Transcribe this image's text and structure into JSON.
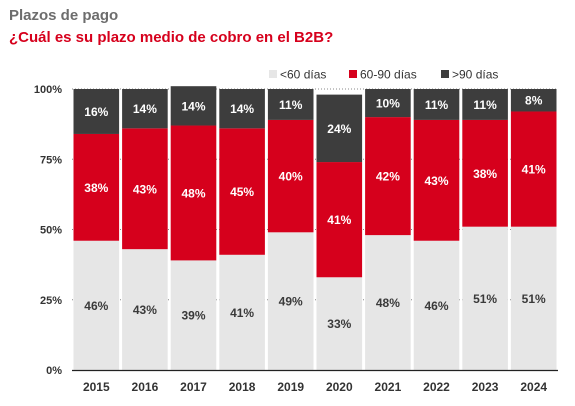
{
  "title": "Plazos de pago",
  "subtitle": "¿Cuál es su plazo medio de cobro en el B2B?",
  "colors": {
    "lt60": "#e6e6e6",
    "mid": "#d6001c",
    "gt90": "#3d3d3d",
    "axis": "#222222",
    "grid": "#888888"
  },
  "chart_data": {
    "type": "bar",
    "stacked": true,
    "categories": [
      "2015",
      "2016",
      "2017",
      "2018",
      "2019",
      "2020",
      "2021",
      "2022",
      "2023",
      "2024"
    ],
    "series": [
      {
        "name": "<60 días",
        "values": [
          46,
          43,
          39,
          41,
          49,
          33,
          48,
          46,
          51,
          51
        ]
      },
      {
        "name": "60-90 días",
        "values": [
          38,
          43,
          48,
          45,
          40,
          41,
          42,
          43,
          38,
          41
        ]
      },
      {
        "name": ">90 días",
        "values": [
          16,
          14,
          14,
          14,
          11,
          24,
          10,
          11,
          11,
          8
        ]
      }
    ],
    "yticks": [
      "0%",
      "25%",
      "50%",
      "75%",
      "100%"
    ],
    "ylim": [
      0,
      100
    ],
    "legend_position": "top-right"
  }
}
